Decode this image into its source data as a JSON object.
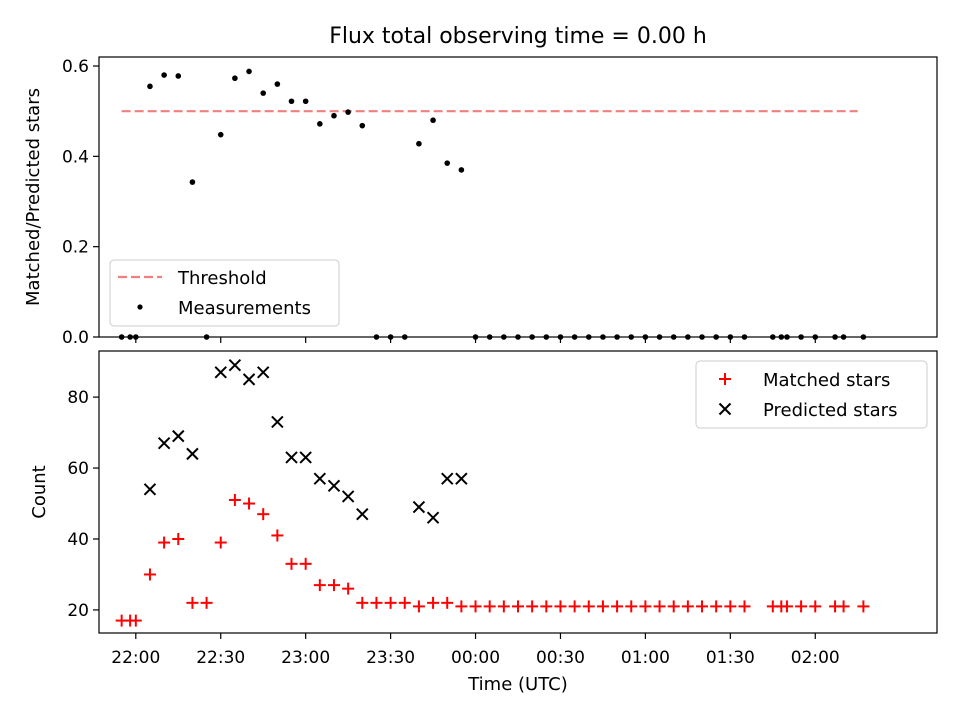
{
  "chart_data": [
    {
      "type": "scatter",
      "title": "Flux total observing time = 0.00 h",
      "xlabel": "",
      "ylabel": "Matched/Predicted stars",
      "xlim": [
        "21:47",
        "02:43"
      ],
      "ylim": [
        0,
        0.62
      ],
      "yticks": [
        "0.0",
        "0.2",
        "0.4",
        "0.6"
      ],
      "legend": "lower-left",
      "grid": false,
      "threshold": {
        "name": "Threshold",
        "color": "#f08080",
        "value": 0.5,
        "x": [
          "21:55",
          "02:15"
        ]
      },
      "measurements": {
        "name": "Measurements",
        "color": "#000000",
        "points": [
          [
            "21:55",
            0.0
          ],
          [
            "21:58",
            0.0
          ],
          [
            "22:00",
            0.0
          ],
          [
            "22:05",
            0.555
          ],
          [
            "22:10",
            0.58
          ],
          [
            "22:15",
            0.578
          ],
          [
            "22:20",
            0.343
          ],
          [
            "22:25",
            0.0
          ],
          [
            "22:30",
            0.448
          ],
          [
            "22:35",
            0.573
          ],
          [
            "22:40",
            0.588
          ],
          [
            "22:45",
            0.54
          ],
          [
            "22:50",
            0.56
          ],
          [
            "22:55",
            0.522
          ],
          [
            "23:00",
            0.522
          ],
          [
            "23:05",
            0.472
          ],
          [
            "23:10",
            0.49
          ],
          [
            "23:15",
            0.498
          ],
          [
            "23:20",
            0.468
          ],
          [
            "23:25",
            0.0
          ],
          [
            "23:30",
            0.0
          ],
          [
            "23:35",
            0.0
          ],
          [
            "23:40",
            0.428
          ],
          [
            "23:45",
            0.48
          ],
          [
            "23:50",
            0.385
          ],
          [
            "23:55",
            0.37
          ],
          [
            "00:00",
            0.0
          ],
          [
            "00:05",
            0.0
          ],
          [
            "00:10",
            0.0
          ],
          [
            "00:15",
            0.0
          ],
          [
            "00:20",
            0.0
          ],
          [
            "00:25",
            0.0
          ],
          [
            "00:30",
            0.0
          ],
          [
            "00:35",
            0.0
          ],
          [
            "00:40",
            0.0
          ],
          [
            "00:45",
            0.0
          ],
          [
            "00:50",
            0.0
          ],
          [
            "00:55",
            0.0
          ],
          [
            "01:00",
            0.0
          ],
          [
            "01:05",
            0.0
          ],
          [
            "01:10",
            0.0
          ],
          [
            "01:15",
            0.0
          ],
          [
            "01:20",
            0.0
          ],
          [
            "01:25",
            0.0
          ],
          [
            "01:30",
            0.0
          ],
          [
            "01:35",
            0.0
          ],
          [
            "01:45",
            0.0
          ],
          [
            "01:48",
            0.0
          ],
          [
            "01:50",
            0.0
          ],
          [
            "01:55",
            0.0
          ],
          [
            "02:00",
            0.0
          ],
          [
            "02:07",
            0.0
          ],
          [
            "02:10",
            0.0
          ],
          [
            "02:17",
            0.0
          ]
        ]
      }
    },
    {
      "type": "scatter",
      "title": "",
      "xlabel": "Time (UTC)",
      "ylabel": "Count",
      "xlim": [
        "21:47",
        "02:43"
      ],
      "ylim": [
        13.5,
        93
      ],
      "yticks": [
        "20",
        "40",
        "60",
        "80"
      ],
      "xticks": [
        "22:00",
        "22:30",
        "23:00",
        "23:30",
        "00:00",
        "00:30",
        "01:00",
        "01:30",
        "02:00"
      ],
      "legend": "top-right",
      "grid": false,
      "series": [
        {
          "name": "Matched stars",
          "color": "#ff0000",
          "marker": "+",
          "points": [
            [
              "21:55",
              17
            ],
            [
              "21:58",
              17
            ],
            [
              "22:00",
              17
            ],
            [
              "22:05",
              30
            ],
            [
              "22:10",
              39
            ],
            [
              "22:15",
              40
            ],
            [
              "22:20",
              22
            ],
            [
              "22:25",
              22
            ],
            [
              "22:30",
              39
            ],
            [
              "22:35",
              51
            ],
            [
              "22:40",
              50
            ],
            [
              "22:45",
              47
            ],
            [
              "22:50",
              41
            ],
            [
              "22:55",
              33
            ],
            [
              "23:00",
              33
            ],
            [
              "23:05",
              27
            ],
            [
              "23:10",
              27
            ],
            [
              "23:15",
              26
            ],
            [
              "23:20",
              22
            ],
            [
              "23:25",
              22
            ],
            [
              "23:30",
              22
            ],
            [
              "23:35",
              22
            ],
            [
              "23:40",
              21
            ],
            [
              "23:45",
              22
            ],
            [
              "23:50",
              22
            ],
            [
              "23:55",
              21
            ],
            [
              "00:00",
              21
            ],
            [
              "00:05",
              21
            ],
            [
              "00:10",
              21
            ],
            [
              "00:15",
              21
            ],
            [
              "00:20",
              21
            ],
            [
              "00:25",
              21
            ],
            [
              "00:30",
              21
            ],
            [
              "00:35",
              21
            ],
            [
              "00:40",
              21
            ],
            [
              "00:45",
              21
            ],
            [
              "00:50",
              21
            ],
            [
              "00:55",
              21
            ],
            [
              "01:00",
              21
            ],
            [
              "01:05",
              21
            ],
            [
              "01:10",
              21
            ],
            [
              "01:15",
              21
            ],
            [
              "01:20",
              21
            ],
            [
              "01:25",
              21
            ],
            [
              "01:30",
              21
            ],
            [
              "01:35",
              21
            ],
            [
              "01:45",
              21
            ],
            [
              "01:48",
              21
            ],
            [
              "01:50",
              21
            ],
            [
              "01:55",
              21
            ],
            [
              "02:00",
              21
            ],
            [
              "02:07",
              21
            ],
            [
              "02:10",
              21
            ],
            [
              "02:17",
              21
            ]
          ]
        },
        {
          "name": "Predicted stars",
          "color": "#000000",
          "marker": "x",
          "points": [
            [
              "22:05",
              54
            ],
            [
              "22:10",
              67
            ],
            [
              "22:15",
              69
            ],
            [
              "22:20",
              64
            ],
            [
              "22:30",
              87
            ],
            [
              "22:35",
              89
            ],
            [
              "22:40",
              85
            ],
            [
              "22:45",
              87
            ],
            [
              "22:50",
              73
            ],
            [
              "22:55",
              63
            ],
            [
              "23:00",
              63
            ],
            [
              "23:05",
              57
            ],
            [
              "23:10",
              55
            ],
            [
              "23:15",
              52
            ],
            [
              "23:20",
              47
            ],
            [
              "23:40",
              49
            ],
            [
              "23:45",
              46
            ],
            [
              "23:50",
              57
            ],
            [
              "23:55",
              57
            ]
          ]
        }
      ]
    }
  ]
}
